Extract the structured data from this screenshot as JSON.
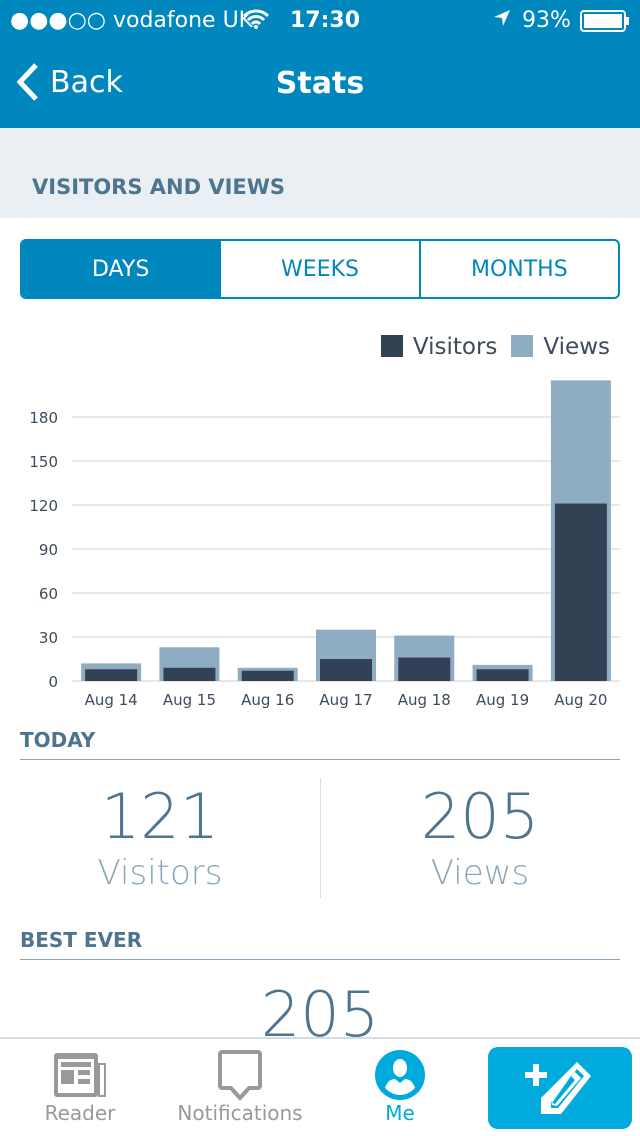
{
  "status_bar": {
    "carrier": "●●●○○ vodafone UK",
    "time": "17:30",
    "battery": "93%"
  },
  "nav": {
    "back_label": "Back",
    "title": "Stats"
  },
  "section_title": "VISITORS AND VIEWS",
  "segments": [
    "DAYS",
    "WEEKS",
    "MONTHS"
  ],
  "colors": {
    "brand": "#0087be",
    "visitors": "#334155",
    "views": "#8fadc2",
    "accent": "#00aadc"
  },
  "chart_data": {
    "type": "bar",
    "stacked": "overlay",
    "categories": [
      "Aug 14",
      "Aug 15",
      "Aug 16",
      "Aug 17",
      "Aug 18",
      "Aug 19",
      "Aug 20"
    ],
    "series": [
      {
        "name": "Visitors",
        "values": [
          8,
          9,
          7,
          15,
          16,
          8,
          121
        ]
      },
      {
        "name": "Views",
        "values": [
          12,
          23,
          9,
          35,
          31,
          11,
          205
        ]
      }
    ],
    "yticks": [
      0,
      30,
      60,
      90,
      120,
      150,
      180
    ],
    "ylim": [
      0,
      210
    ],
    "legend": "top-right",
    "grid": true
  },
  "today": {
    "title": "TODAY",
    "visitors": "121",
    "visitors_label": "Visitors",
    "views": "205",
    "views_label": "Views"
  },
  "best_ever": {
    "title": "BEST EVER",
    "value": "205"
  },
  "tabbar": {
    "reader": "Reader",
    "notifications": "Notifications",
    "me": "Me"
  }
}
